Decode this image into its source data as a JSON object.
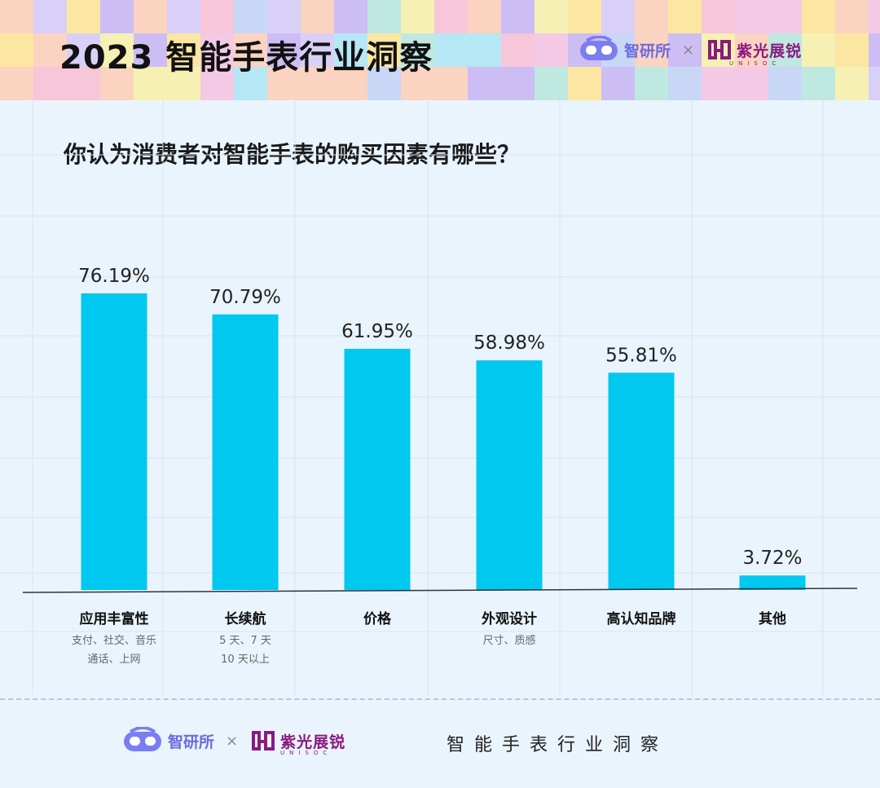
{
  "header": {
    "title": "2023 智能手表行业洞察",
    "brand_1": "智研所",
    "brand_x": "×",
    "brand_2": "紫光展锐",
    "brand_2_sub": "UNISOC"
  },
  "question": "你认为消费者对智能手表的购买因素有哪些？",
  "chart_data": {
    "type": "bar",
    "title": "你认为消费者对智能手表的购买因素有哪些？",
    "categories": [
      "应用丰富性",
      "长续航",
      "价格",
      "外观设计",
      "高认知品牌",
      "其他"
    ],
    "subtitles": [
      [
        "支付、社交、音乐",
        "通话、上网"
      ],
      [
        "5 天、7 天",
        "10 天以上"
      ],
      [],
      [
        "尺寸、质感"
      ],
      [],
      []
    ],
    "values": [
      76.19,
      70.79,
      61.95,
      58.98,
      55.81,
      3.72
    ],
    "value_labels": [
      "76.19%",
      "70.79%",
      "61.95%",
      "58.98%",
      "55.81%",
      "3.72%"
    ],
    "unit": "%",
    "ylim": [
      0,
      100
    ],
    "grid": true,
    "legend": "none",
    "bar_color": "#00c8ef"
  },
  "footer": {
    "brand_1": "智研所",
    "brand_x": "×",
    "brand_2": "紫光展锐",
    "brand_2_sub": "UNISOC",
    "tagline": "智能手表行业洞察"
  },
  "colors": {
    "background": "#eaf4fd",
    "bar": "#00c8ef",
    "grid": "#d7e4f0",
    "mosaic": [
      "#f7c6d9",
      "#fbe7a1",
      "#cdbdf5",
      "#b6e7f4",
      "#fbd3c1",
      "#d9d0f7",
      "#f6f0b4",
      "#bfe8e0",
      "#c9d7f7",
      "#f4c9e6"
    ]
  }
}
